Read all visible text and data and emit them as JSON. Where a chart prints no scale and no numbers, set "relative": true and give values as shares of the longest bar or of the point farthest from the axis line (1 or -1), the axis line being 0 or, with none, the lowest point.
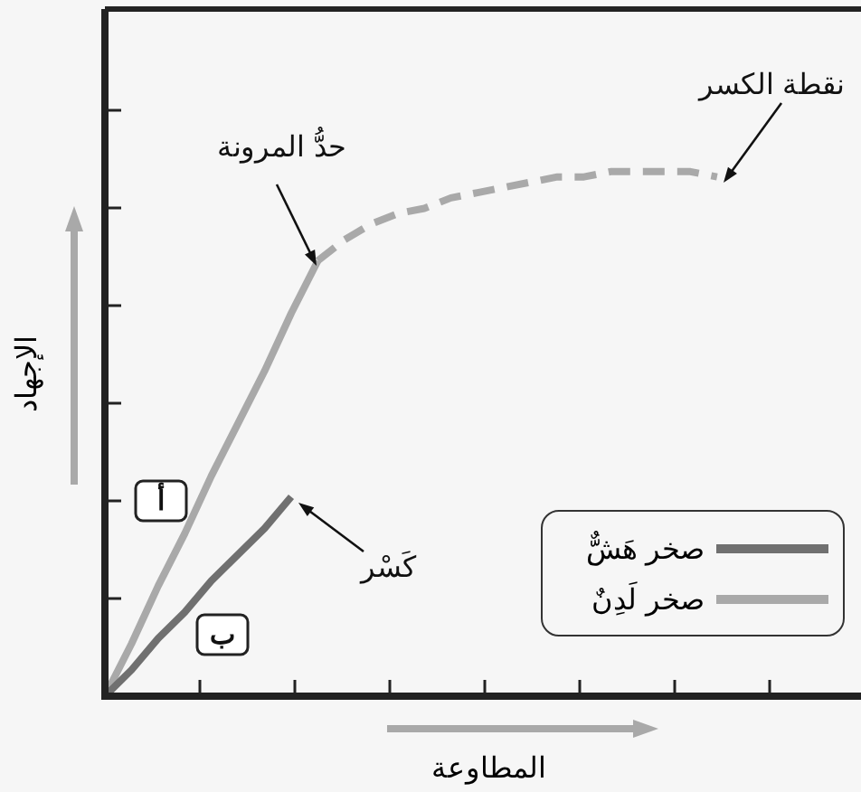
{
  "chart_data": {
    "type": "line",
    "relative": true,
    "xlabel": "المطاوعة",
    "ylabel": "الإجهاد",
    "legend": "bottom right",
    "marker": "none",
    "categories": [
      null,
      null,
      null,
      null,
      null,
      null,
      null,
      null,
      null,
      null,
      null,
      null,
      null,
      null,
      null,
      null,
      null,
      null,
      null,
      null,
      null,
      null,
      null,
      null,
      null,
      null,
      null,
      null,
      null
    ],
    "series": [
      {
        "name": "صخر هَشٌّ",
        "color": "#707070",
        "line_style": "solid",
        "values": [
          0,
          0.05,
          0.11,
          0.16,
          0.22,
          0.27,
          0.32,
          0.38,
          null,
          null,
          null,
          null,
          null,
          null,
          null,
          null,
          null,
          null,
          null,
          null,
          null,
          null,
          null,
          null,
          null,
          null,
          null,
          null,
          null
        ]
      },
      {
        "name": "صخر لَدِنٌ",
        "color": "#a9a9a9",
        "line_style": "solid",
        "values": [
          0,
          0.1,
          0.21,
          0.31,
          0.42,
          0.52,
          0.62,
          0.73,
          0.83,
          null,
          null,
          null,
          null,
          null,
          null,
          null,
          null,
          null,
          null,
          null,
          null,
          null,
          null,
          null,
          null,
          null,
          null,
          null,
          null
        ]
      },
      {
        "color": "#a9a9a9",
        "line_style": "dashed",
        "values": [
          null,
          null,
          null,
          null,
          null,
          null,
          null,
          null,
          0.83,
          0.87,
          0.9,
          0.92,
          0.93,
          0.95,
          0.96,
          0.97,
          0.98,
          0.99,
          0.99,
          1.0,
          1.0,
          1.0,
          1.0,
          0.99,
          null,
          null,
          null,
          null,
          null
        ]
      }
    ],
    "annotations": [
      "حدُّ المرونة",
      "نقطة الكسر",
      "كَسْر",
      "أ",
      "ب"
    ]
  }
}
